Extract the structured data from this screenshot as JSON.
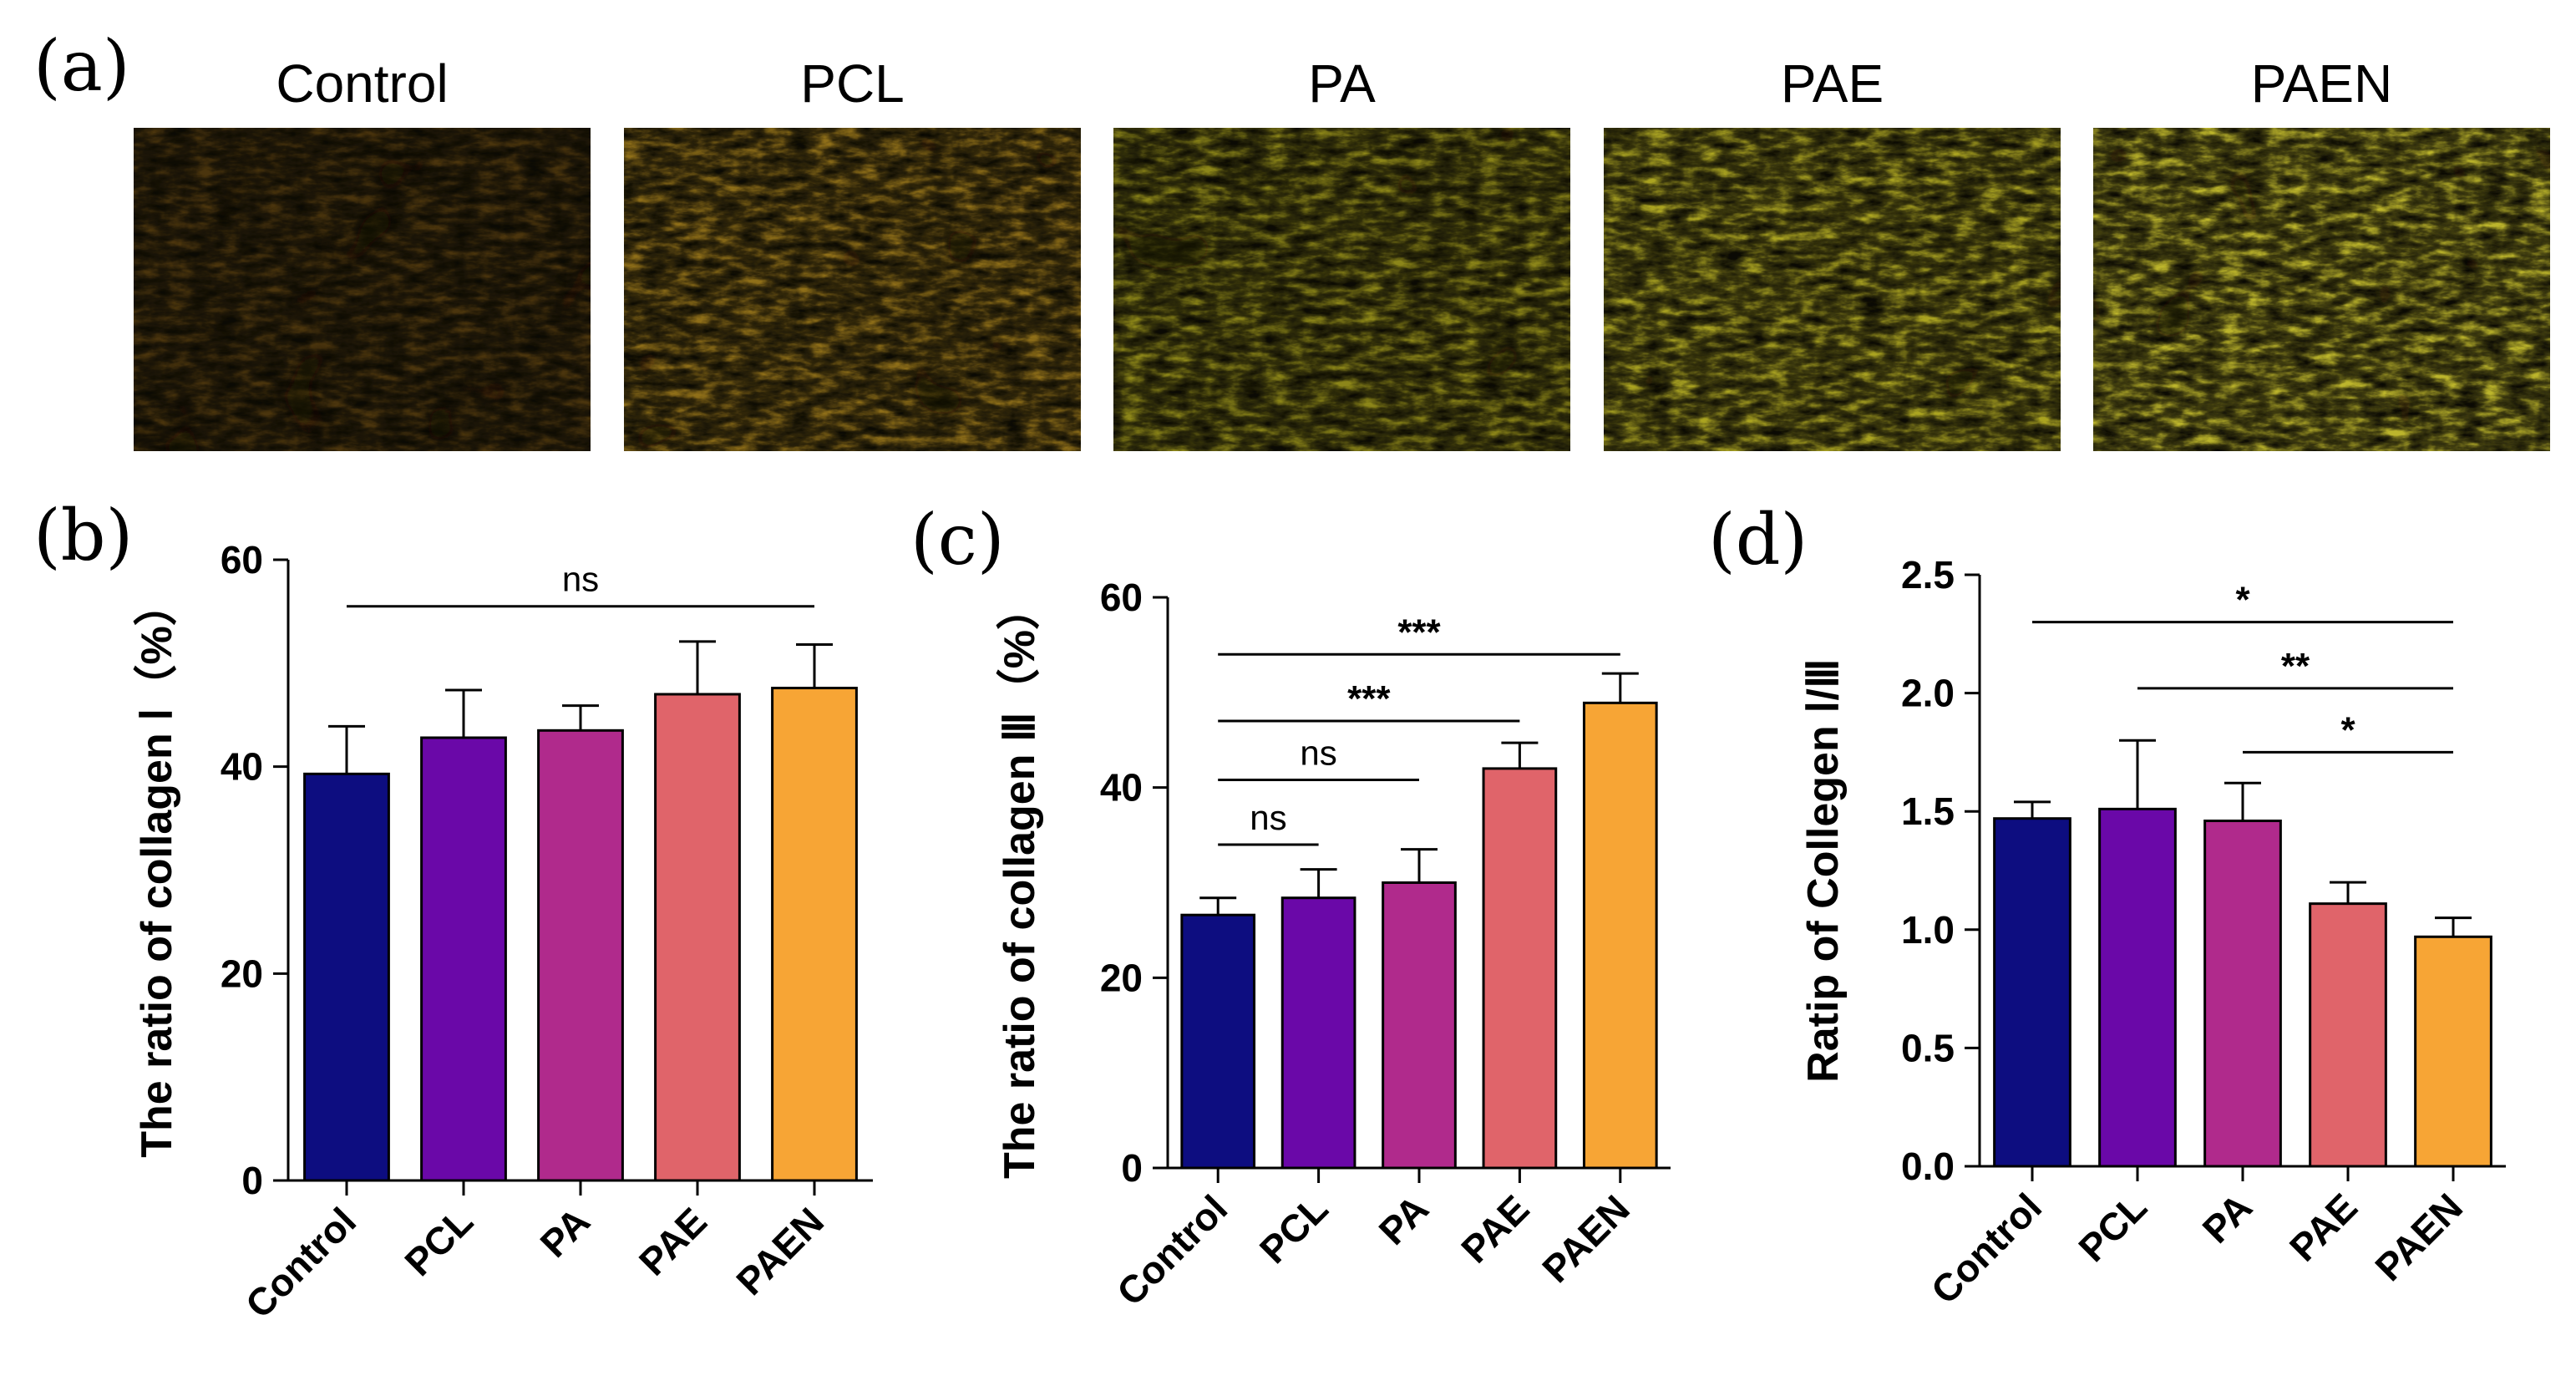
{
  "panel_letters": [
    "(a)",
    "(b)",
    "(c)",
    "(d)"
  ],
  "micrographs": [
    {
      "label": "Control",
      "tone": "#9a6a1a",
      "bright": 0.45
    },
    {
      "label": "PCL",
      "tone": "#c89a22",
      "bright": 0.7
    },
    {
      "label": "PA",
      "tone": "#b8b020",
      "bright": 0.75
    },
    {
      "label": "PAE",
      "tone": "#c8c028",
      "bright": 0.85
    },
    {
      "label": "PAEN",
      "tone": "#d0c830",
      "bright": 0.9
    }
  ],
  "colors": {
    "Control": "#0d0d80",
    "PCL": "#6a08a8",
    "PA": "#b02a8c",
    "PAE": "#e0646a",
    "PAEN": "#f7a535"
  },
  "chart_data": [
    {
      "type": "bar",
      "panel": "(b)",
      "categories": [
        "Control",
        "PCL",
        "PA",
        "PAE",
        "PAEN"
      ],
      "values": [
        39.3,
        42.8,
        43.5,
        47.0,
        47.6
      ],
      "errors": [
        4.6,
        4.6,
        2.4,
        5.1,
        4.2
      ],
      "ylabel": "The ratio of collagen Ⅰ（%）",
      "ylim": [
        0,
        60
      ],
      "yticks": [
        "0",
        "20",
        "40",
        "60"
      ],
      "comparisons": [
        {
          "from": "Control",
          "to": "PAEN",
          "y": 55.5,
          "label": "ns"
        }
      ]
    },
    {
      "type": "bar",
      "panel": "(c)",
      "categories": [
        "Control",
        "PCL",
        "PA",
        "PAE",
        "PAEN"
      ],
      "values": [
        26.6,
        28.4,
        30.0,
        42.0,
        48.9
      ],
      "errors": [
        1.8,
        3.0,
        3.5,
        2.7,
        3.1
      ],
      "ylabel": "The ratio of collagen Ⅲ（%）",
      "ylim": [
        0,
        60
      ],
      "yticks": [
        "0",
        "20",
        "40",
        "60"
      ],
      "comparisons": [
        {
          "from": "Control",
          "to": "PAEN",
          "y": 54.0,
          "label": "***"
        },
        {
          "from": "Control",
          "to": "PAE",
          "y": 47.0,
          "label": "***"
        },
        {
          "from": "Control",
          "to": "PA",
          "y": 40.8,
          "label": "ns"
        },
        {
          "from": "Control",
          "to": "PCL",
          "y": 34.0,
          "label": "ns"
        }
      ]
    },
    {
      "type": "bar",
      "panel": "(d)",
      "categories": [
        "Control",
        "PCL",
        "PA",
        "PAE",
        "PAEN"
      ],
      "values": [
        1.47,
        1.51,
        1.46,
        1.11,
        0.97
      ],
      "errors": [
        0.07,
        0.29,
        0.16,
        0.09,
        0.08
      ],
      "ylabel": "Ratip of Collegen Ⅰ/Ⅲ",
      "ylim": [
        0,
        2.5
      ],
      "yticks": [
        "0.0",
        "0.5",
        "1.0",
        "1.5",
        "2.0",
        "2.5"
      ],
      "comparisons": [
        {
          "from": "Control",
          "to": "PAEN",
          "y": 2.3,
          "label": "*"
        },
        {
          "from": "PCL",
          "to": "PAEN",
          "y": 2.02,
          "label": "**"
        },
        {
          "from": "PA",
          "to": "PAEN",
          "y": 1.75,
          "label": "*"
        }
      ]
    }
  ]
}
